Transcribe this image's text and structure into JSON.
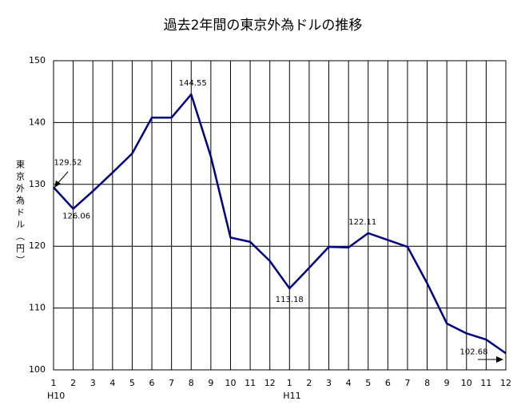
{
  "chart_data": {
    "type": "line",
    "title": "過去2年間の東京外為ドルの推移",
    "y_label": "東京外為ドル（円）",
    "categories": [
      "1",
      "2",
      "3",
      "4",
      "5",
      "6",
      "7",
      "8",
      "9",
      "10",
      "11",
      "12",
      "1",
      "2",
      "3",
      "4",
      "5",
      "6",
      "7",
      "8",
      "9",
      "10",
      "11",
      "12"
    ],
    "group_labels": [
      "H10",
      null,
      null,
      null,
      null,
      null,
      null,
      null,
      null,
      null,
      null,
      null,
      "H11",
      null,
      null,
      null,
      null,
      null,
      null,
      null,
      null,
      null,
      null,
      null
    ],
    "series": [
      {
        "name": "東京外為ドル",
        "color": "#000080",
        "values": [
          129.52,
          126.06,
          128.9,
          131.9,
          135.0,
          140.8,
          140.8,
          144.55,
          134.5,
          121.4,
          120.7,
          117.6,
          113.18,
          116.5,
          119.9,
          119.8,
          122.11,
          121.0,
          119.9,
          114.0,
          107.5,
          105.9,
          104.9,
          102.68
        ],
        "value_labels": [
          "129.52",
          "126.06",
          null,
          null,
          null,
          null,
          null,
          "144.55",
          null,
          null,
          null,
          null,
          "113.18",
          null,
          null,
          null,
          "122.11",
          null,
          null,
          null,
          null,
          null,
          null,
          "102.68"
        ]
      }
    ],
    "ylim": [
      100,
      150
    ],
    "yticks": [
      100,
      110,
      120,
      130,
      140,
      150
    ],
    "grid": true
  }
}
